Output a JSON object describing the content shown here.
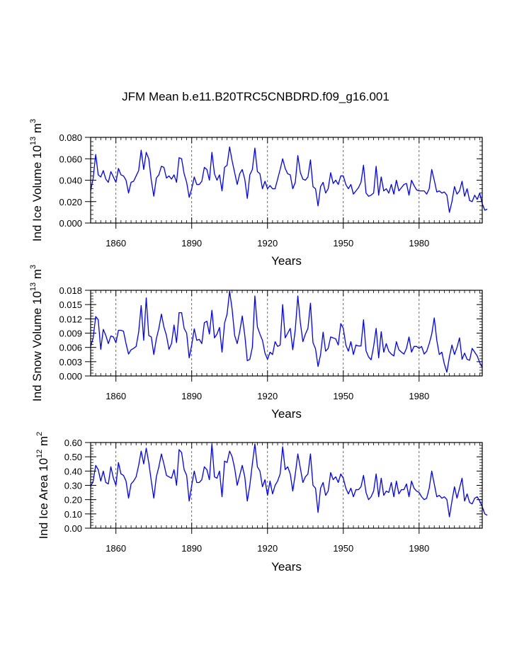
{
  "figure": {
    "title": "JFM Mean b.e11.B20TRC5CNBDRD.f09_g16.001",
    "line_color": "#0000ff"
  },
  "chart_data": [
    {
      "type": "line",
      "title": "",
      "xlabel": "Years",
      "ylabel_base": "Ind Ice Volume 10",
      "ylabel_exp": "13",
      "ylabel_unit": " m",
      "ylabel_unit_exp": "3",
      "xlim": [
        1850,
        2005
      ],
      "ylim": [
        0,
        0.08
      ],
      "yticks": [
        0,
        0.02,
        0.04,
        0.06,
        0.08
      ],
      "ytick_labels": [
        "0.000",
        "0.020",
        "0.040",
        "0.060",
        "0.080"
      ],
      "xticks": [
        1860,
        1890,
        1920,
        1950,
        1980
      ],
      "xtick_labels": [
        "1860",
        "1890",
        "1920",
        "1950",
        "1980"
      ],
      "gridlines_x": [
        1860,
        1890,
        1920,
        1950,
        1980
      ],
      "x_start": 1850,
      "values": [
        0.03,
        0.042,
        0.064,
        0.045,
        0.043,
        0.049,
        0.041,
        0.038,
        0.048,
        0.043,
        0.038,
        0.051,
        0.045,
        0.044,
        0.04,
        0.028,
        0.038,
        0.039,
        0.044,
        0.049,
        0.068,
        0.05,
        0.066,
        0.06,
        0.04,
        0.025,
        0.042,
        0.045,
        0.053,
        0.052,
        0.042,
        0.044,
        0.041,
        0.045,
        0.038,
        0.061,
        0.06,
        0.046,
        0.038,
        0.024,
        0.032,
        0.043,
        0.036,
        0.036,
        0.039,
        0.052,
        0.05,
        0.04,
        0.066,
        0.046,
        0.04,
        0.045,
        0.03,
        0.052,
        0.054,
        0.071,
        0.058,
        0.047,
        0.036,
        0.046,
        0.05,
        0.041,
        0.023,
        0.045,
        0.05,
        0.07,
        0.048,
        0.046,
        0.032,
        0.039,
        0.032,
        0.035,
        0.032,
        0.032,
        0.041,
        0.05,
        0.06,
        0.051,
        0.046,
        0.045,
        0.032,
        0.038,
        0.063,
        0.047,
        0.041,
        0.04,
        0.043,
        0.059,
        0.034,
        0.032,
        0.016,
        0.034,
        0.038,
        0.028,
        0.032,
        0.047,
        0.037,
        0.04,
        0.036,
        0.044,
        0.044,
        0.036,
        0.032,
        0.036,
        0.027,
        0.03,
        0.033,
        0.038,
        0.054,
        0.028,
        0.025,
        0.026,
        0.028,
        0.053,
        0.026,
        0.043,
        0.03,
        0.032,
        0.028,
        0.036,
        0.027,
        0.04,
        0.03,
        0.033,
        0.036,
        0.037,
        0.026,
        0.04,
        0.035,
        0.031,
        0.03,
        0.03,
        0.03,
        0.027,
        0.032,
        0.05,
        0.04,
        0.029,
        0.03,
        0.028,
        0.029,
        0.026,
        0.01,
        0.02,
        0.034,
        0.027,
        0.03,
        0.039,
        0.025,
        0.032,
        0.021,
        0.02,
        0.026,
        0.022,
        0.028,
        0.018,
        0.012,
        0.013
      ]
    },
    {
      "type": "line",
      "title": "",
      "xlabel": "Years",
      "ylabel_base": "Ind Snow Volume 10",
      "ylabel_exp": "13",
      "ylabel_unit": " m",
      "ylabel_unit_exp": "3",
      "xlim": [
        1850,
        2005
      ],
      "ylim": [
        0,
        0.018
      ],
      "yticks": [
        0,
        0.003,
        0.006,
        0.009,
        0.012,
        0.015,
        0.018
      ],
      "ytick_labels": [
        "0.000",
        "0.003",
        "0.006",
        "0.009",
        "0.012",
        "0.015",
        "0.018"
      ],
      "xticks": [
        1860,
        1890,
        1920,
        1950,
        1980
      ],
      "xtick_labels": [
        "1860",
        "1890",
        "1920",
        "1950",
        "1980"
      ],
      "gridlines_x": [
        1860,
        1890,
        1920,
        1950,
        1980
      ],
      "x_start": 1850,
      "values": [
        0.0062,
        0.008,
        0.0125,
        0.0118,
        0.0056,
        0.0098,
        0.0085,
        0.0068,
        0.0084,
        0.0082,
        0.007,
        0.0096,
        0.0096,
        0.0094,
        0.0068,
        0.0046,
        0.0055,
        0.0058,
        0.0062,
        0.0092,
        0.0148,
        0.0075,
        0.0164,
        0.0085,
        0.0082,
        0.0045,
        0.0078,
        0.01,
        0.013,
        0.0103,
        0.0085,
        0.0056,
        0.0068,
        0.0107,
        0.007,
        0.0133,
        0.0133,
        0.01,
        0.009,
        0.0038,
        0.0065,
        0.0099,
        0.0075,
        0.0077,
        0.0068,
        0.0112,
        0.0115,
        0.0088,
        0.0138,
        0.008,
        0.0088,
        0.0102,
        0.005,
        0.0111,
        0.013,
        0.0178,
        0.014,
        0.0085,
        0.0068,
        0.0093,
        0.0126,
        0.0086,
        0.0032,
        0.0035,
        0.006,
        0.0168,
        0.0103,
        0.0088,
        0.0075,
        0.0048,
        0.0035,
        0.005,
        0.0045,
        0.0072,
        0.0062,
        0.0065,
        0.015,
        0.008,
        0.009,
        0.01,
        0.0055,
        0.0098,
        0.0168,
        0.0112,
        0.0072,
        0.0088,
        0.01,
        0.0153,
        0.007,
        0.0057,
        0.002,
        0.0045,
        0.0092,
        0.0052,
        0.0058,
        0.0082,
        0.008,
        0.0078,
        0.0065,
        0.011,
        0.01,
        0.0065,
        0.0052,
        0.0072,
        0.0045,
        0.0065,
        0.0063,
        0.0063,
        0.0118,
        0.0053,
        0.004,
        0.0034,
        0.0062,
        0.01,
        0.0038,
        0.0093,
        0.005,
        0.0068,
        0.0052,
        0.0046,
        0.0042,
        0.0072,
        0.0055,
        0.005,
        0.0046,
        0.0058,
        0.0082,
        0.005,
        0.0062,
        0.0062,
        0.0058,
        0.0062,
        0.0046,
        0.0052,
        0.0068,
        0.0088,
        0.0122,
        0.0075,
        0.0045,
        0.005,
        0.0025,
        0.0008,
        0.004,
        0.0065,
        0.0045,
        0.006,
        0.008,
        0.0035,
        0.0048,
        0.0035,
        0.0033,
        0.0058,
        0.005,
        0.0042,
        0.0028,
        0.0018
      ]
    },
    {
      "type": "line",
      "title": "",
      "xlabel": "Years",
      "ylabel_base": "Ind Ice Area 10",
      "ylabel_exp": "12",
      "ylabel_unit": " m",
      "ylabel_unit_exp": "2",
      "xlim": [
        1850,
        2005
      ],
      "ylim": [
        0,
        0.6
      ],
      "yticks": [
        0,
        0.1,
        0.2,
        0.3,
        0.4,
        0.5,
        0.6
      ],
      "ytick_labels": [
        "0.00",
        "0.10",
        "0.20",
        "0.30",
        "0.40",
        "0.50",
        "0.60"
      ],
      "xticks": [
        1860,
        1890,
        1920,
        1950,
        1980
      ],
      "xtick_labels": [
        "1860",
        "1890",
        "1920",
        "1950",
        "1980"
      ],
      "gridlines_x": [
        1860,
        1890,
        1920,
        1950,
        1980
      ],
      "x_start": 1850,
      "values": [
        0.29,
        0.33,
        0.44,
        0.41,
        0.33,
        0.4,
        0.32,
        0.31,
        0.43,
        0.35,
        0.3,
        0.46,
        0.38,
        0.37,
        0.33,
        0.21,
        0.31,
        0.33,
        0.36,
        0.44,
        0.54,
        0.45,
        0.56,
        0.46,
        0.33,
        0.21,
        0.36,
        0.43,
        0.52,
        0.45,
        0.37,
        0.36,
        0.35,
        0.41,
        0.3,
        0.55,
        0.53,
        0.41,
        0.37,
        0.19,
        0.3,
        0.4,
        0.32,
        0.32,
        0.34,
        0.43,
        0.41,
        0.34,
        0.59,
        0.36,
        0.35,
        0.4,
        0.22,
        0.47,
        0.46,
        0.54,
        0.5,
        0.42,
        0.3,
        0.37,
        0.44,
        0.36,
        0.19,
        0.3,
        0.45,
        0.59,
        0.43,
        0.4,
        0.29,
        0.34,
        0.23,
        0.33,
        0.24,
        0.3,
        0.33,
        0.38,
        0.57,
        0.41,
        0.43,
        0.38,
        0.26,
        0.38,
        0.52,
        0.42,
        0.32,
        0.36,
        0.38,
        0.52,
        0.3,
        0.28,
        0.11,
        0.28,
        0.32,
        0.23,
        0.26,
        0.39,
        0.34,
        0.36,
        0.32,
        0.38,
        0.35,
        0.28,
        0.24,
        0.28,
        0.22,
        0.27,
        0.27,
        0.29,
        0.37,
        0.25,
        0.2,
        0.22,
        0.26,
        0.38,
        0.22,
        0.35,
        0.23,
        0.26,
        0.25,
        0.32,
        0.22,
        0.33,
        0.24,
        0.27,
        0.27,
        0.31,
        0.22,
        0.33,
        0.28,
        0.26,
        0.25,
        0.22,
        0.2,
        0.21,
        0.28,
        0.4,
        0.31,
        0.22,
        0.23,
        0.21,
        0.22,
        0.2,
        0.08,
        0.19,
        0.29,
        0.21,
        0.28,
        0.35,
        0.19,
        0.24,
        0.18,
        0.17,
        0.21,
        0.22,
        0.19,
        0.15,
        0.1,
        0.09
      ]
    }
  ]
}
